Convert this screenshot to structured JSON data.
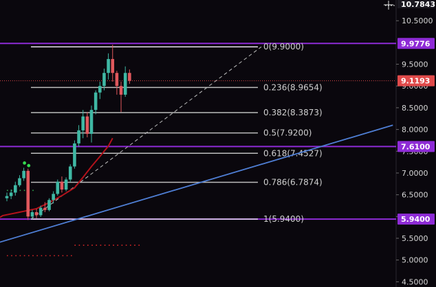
{
  "chart_data": {
    "type": "candlestick",
    "top_price_label": "10.7843",
    "y_ticks": [
      "10.5000",
      "9.5000",
      "9.0000",
      "8.5000",
      "8.0000",
      "7.5000",
      "7.0000",
      "6.5000",
      "6.0000",
      "5.5000",
      "5.0000",
      "4.5000"
    ],
    "ylim": [
      4.38,
      10.85
    ],
    "fib_levels": [
      {
        "label": "0(9.9000)",
        "price": 9.9
      },
      {
        "label": "0.236(8.9654)",
        "price": 8.9654
      },
      {
        "label": "0.382(8.3873)",
        "price": 8.3873
      },
      {
        "label": "0.5(7.9200)",
        "price": 7.92
      },
      {
        "label": "0.618(7.4527)",
        "price": 7.4527
      },
      {
        "label": "0.786(6.7874)",
        "price": 6.7874
      },
      {
        "label": "1(5.9400)",
        "price": 5.94
      }
    ],
    "horizontal_lines": [
      {
        "label": "9.9776",
        "price": 9.9776,
        "color": "#8e2bd6"
      },
      {
        "label": "7.6100",
        "price": 7.61,
        "color": "#8e2bd6"
      },
      {
        "label": "5.9400",
        "price": 5.94,
        "color": "#8e2bd6"
      }
    ],
    "last_price": {
      "label": "9.1193",
      "price": 9.1193,
      "color": "#e04a4a"
    },
    "trendline": {
      "color": "#4f7fd6",
      "from": {
        "bar": -1,
        "price": 5.6
      },
      "to": {
        "bar": 62,
        "price": 8.1
      }
    },
    "moving_average": {
      "color": "#b3121b",
      "points": [
        [
          0,
          6.02
        ],
        [
          4,
          6.1
        ],
        [
          8,
          6.18
        ],
        [
          11,
          6.32
        ],
        [
          14,
          6.48
        ],
        [
          17,
          6.66
        ],
        [
          19,
          6.9
        ],
        [
          21,
          7.15
        ],
        [
          23,
          7.38
        ],
        [
          25,
          7.62
        ],
        [
          26,
          7.8
        ]
      ]
    },
    "green_markers": [
      [
        4,
        7.23
      ],
      [
        5,
        7.17
      ]
    ],
    "dotted_levels": [
      {
        "price": 6.6,
        "from_bar": 0,
        "to_bar": 7,
        "color": "#2fa84f"
      },
      {
        "price": 5.1,
        "from_bar": 0,
        "to_bar": 16,
        "color": "#d22626"
      },
      {
        "price": 5.34,
        "from_bar": 16,
        "to_bar": 32,
        "color": "#d22626"
      }
    ],
    "candles": [
      {
        "o": 6.42,
        "h": 6.55,
        "l": 6.35,
        "c": 6.47
      },
      {
        "o": 6.47,
        "h": 6.62,
        "l": 6.4,
        "c": 6.55
      },
      {
        "o": 6.55,
        "h": 6.8,
        "l": 6.48,
        "c": 6.72
      },
      {
        "o": 6.72,
        "h": 6.95,
        "l": 6.68,
        "c": 6.88
      },
      {
        "o": 6.88,
        "h": 7.12,
        "l": 6.82,
        "c": 7.05
      },
      {
        "o": 7.05,
        "h": 7.1,
        "l": 5.92,
        "c": 6.0
      },
      {
        "o": 6.0,
        "h": 6.15,
        "l": 5.94,
        "c": 6.1
      },
      {
        "o": 6.1,
        "h": 6.18,
        "l": 5.96,
        "c": 6.03
      },
      {
        "o": 6.03,
        "h": 6.25,
        "l": 5.99,
        "c": 6.2
      },
      {
        "o": 6.2,
        "h": 6.33,
        "l": 6.1,
        "c": 6.15
      },
      {
        "o": 6.15,
        "h": 6.42,
        "l": 6.12,
        "c": 6.38
      },
      {
        "o": 6.38,
        "h": 6.58,
        "l": 6.3,
        "c": 6.52
      },
      {
        "o": 6.52,
        "h": 6.85,
        "l": 6.48,
        "c": 6.8
      },
      {
        "o": 6.8,
        "h": 6.92,
        "l": 6.55,
        "c": 6.62
      },
      {
        "o": 6.62,
        "h": 6.9,
        "l": 6.58,
        "c": 6.85
      },
      {
        "o": 6.85,
        "h": 7.2,
        "l": 6.8,
        "c": 7.15
      },
      {
        "o": 7.15,
        "h": 7.75,
        "l": 7.1,
        "c": 7.68
      },
      {
        "o": 7.68,
        "h": 8.1,
        "l": 7.6,
        "c": 7.98
      },
      {
        "o": 7.98,
        "h": 8.45,
        "l": 7.8,
        "c": 8.3
      },
      {
        "o": 8.3,
        "h": 8.4,
        "l": 7.82,
        "c": 7.9
      },
      {
        "o": 7.9,
        "h": 8.55,
        "l": 7.7,
        "c": 8.45
      },
      {
        "o": 8.45,
        "h": 8.9,
        "l": 8.35,
        "c": 8.85
      },
      {
        "o": 8.85,
        "h": 9.1,
        "l": 8.7,
        "c": 9.0
      },
      {
        "o": 9.0,
        "h": 9.4,
        "l": 8.9,
        "c": 9.3
      },
      {
        "o": 9.3,
        "h": 9.75,
        "l": 9.15,
        "c": 9.62
      },
      {
        "o": 9.62,
        "h": 9.95,
        "l": 9.1,
        "c": 9.3
      },
      {
        "o": 9.3,
        "h": 9.35,
        "l": 8.8,
        "c": 9.0
      },
      {
        "o": 9.0,
        "h": 9.1,
        "l": 8.4,
        "c": 8.8
      },
      {
        "o": 8.8,
        "h": 9.45,
        "l": 8.75,
        "c": 9.3
      },
      {
        "o": 9.3,
        "h": 9.38,
        "l": 9.05,
        "c": 9.12
      }
    ]
  }
}
